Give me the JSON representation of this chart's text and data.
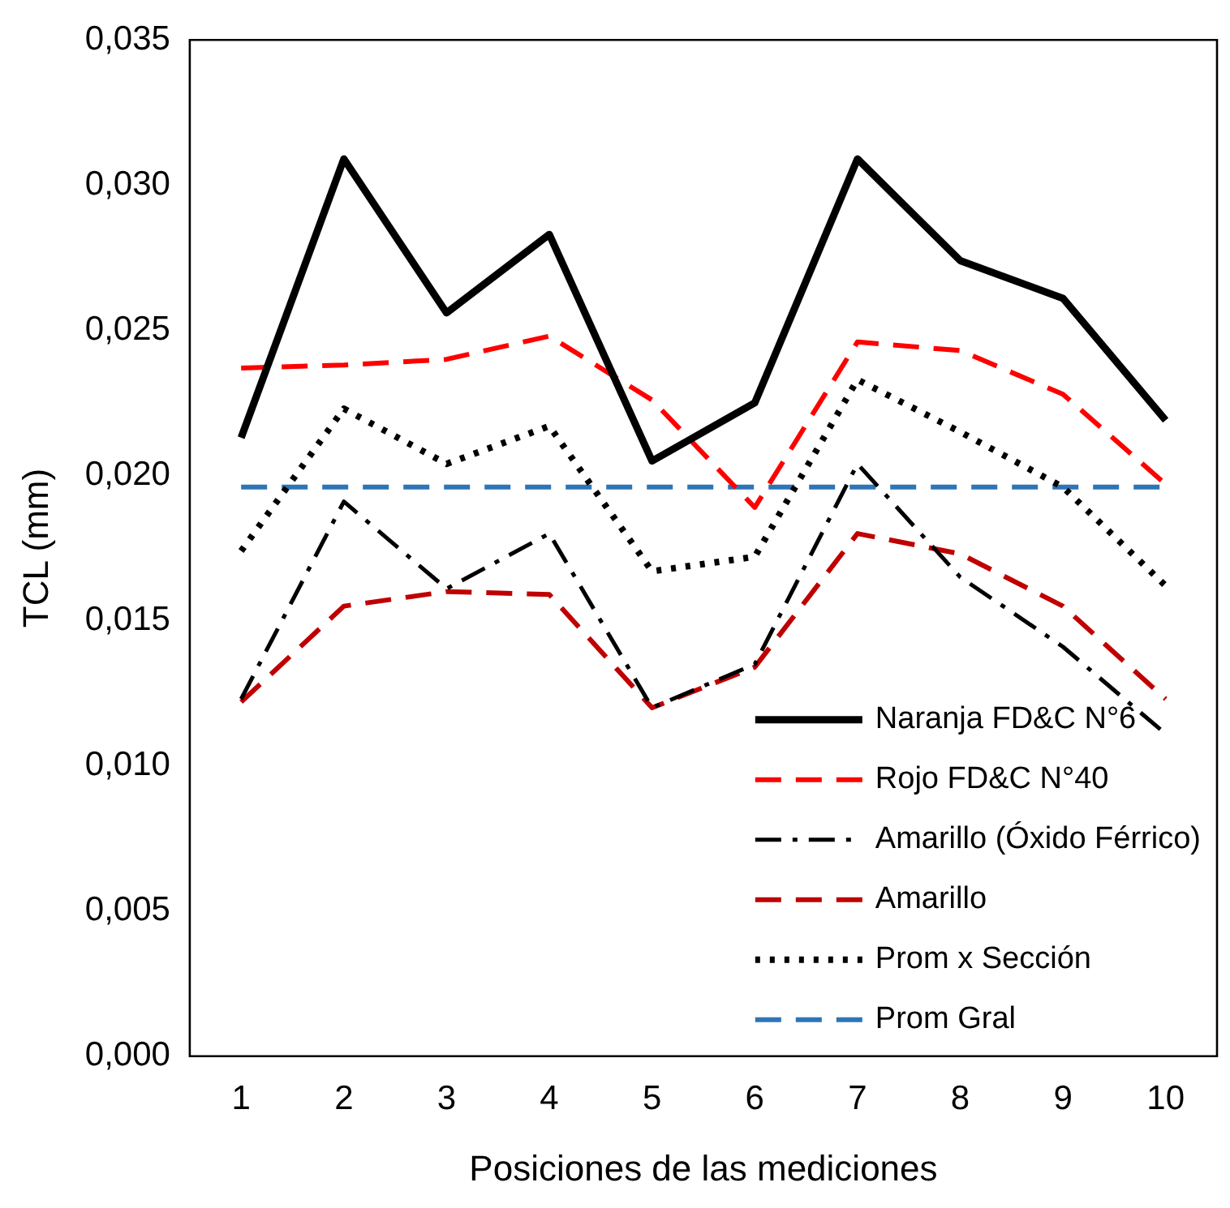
{
  "chart_data": {
    "type": "line",
    "xlabel": "Posiciones de las mediciones",
    "ylabel": "TCL (mm)",
    "categories": [
      "1",
      "2",
      "3",
      "4",
      "5",
      "6",
      "7",
      "8",
      "9",
      "10"
    ],
    "series": [
      {
        "name": "Naranja FD&C N°6",
        "color": "#000000",
        "line_style": "solid",
        "values": [
          0.0213,
          0.0309,
          0.0256,
          0.0283,
          0.0205,
          0.0225,
          0.0309,
          0.0274,
          0.0261,
          0.0219
        ]
      },
      {
        "name": "Rojo FD&C N°40",
        "color": "#ff0000",
        "line_style": "dashed",
        "values": [
          0.0237,
          0.0238,
          0.024,
          0.0248,
          0.0226,
          0.0189,
          0.0246,
          0.0243,
          0.0228,
          0.0197
        ]
      },
      {
        "name": "Amarillo (Óxido Férrico)",
        "color": "#000000",
        "line_style": "dashdot",
        "values": [
          0.0123,
          0.0191,
          0.0161,
          0.018,
          0.012,
          0.0135,
          0.0204,
          0.0165,
          0.0141,
          0.0111
        ]
      },
      {
        "name": "Amarillo",
        "color": "#c00000",
        "line_style": "dashed",
        "values": [
          0.0122,
          0.0155,
          0.016,
          0.0159,
          0.012,
          0.0134,
          0.018,
          0.0173,
          0.0155,
          0.0123
        ]
      },
      {
        "name": "Prom x Sección",
        "color": "#000000",
        "line_style": "dotted",
        "values": [
          0.0174,
          0.0223,
          0.0204,
          0.0217,
          0.0167,
          0.0172,
          0.0233,
          0.0215,
          0.0196,
          0.0162
        ]
      },
      {
        "name": "Prom Gral",
        "color": "#2e75b6",
        "line_style": "dashed",
        "values": [
          0.0196,
          0.0196,
          0.0196,
          0.0196,
          0.0196,
          0.0196,
          0.0196,
          0.0196,
          0.0196,
          0.0196
        ]
      }
    ],
    "ylim": [
      0,
      0.035
    ],
    "yticks": [
      {
        "value": 0,
        "label": "0,000"
      },
      {
        "value": 0.005,
        "label": "0,005"
      },
      {
        "value": 0.01,
        "label": "0,010"
      },
      {
        "value": 0.015,
        "label": "0,015"
      },
      {
        "value": 0.02,
        "label": "0,020"
      },
      {
        "value": 0.025,
        "label": "0,025"
      },
      {
        "value": 0.03,
        "label": "0,030"
      },
      {
        "value": 0.035,
        "label": "0,035"
      }
    ],
    "grid": false,
    "legend": "bottom right",
    "marker": "none"
  }
}
